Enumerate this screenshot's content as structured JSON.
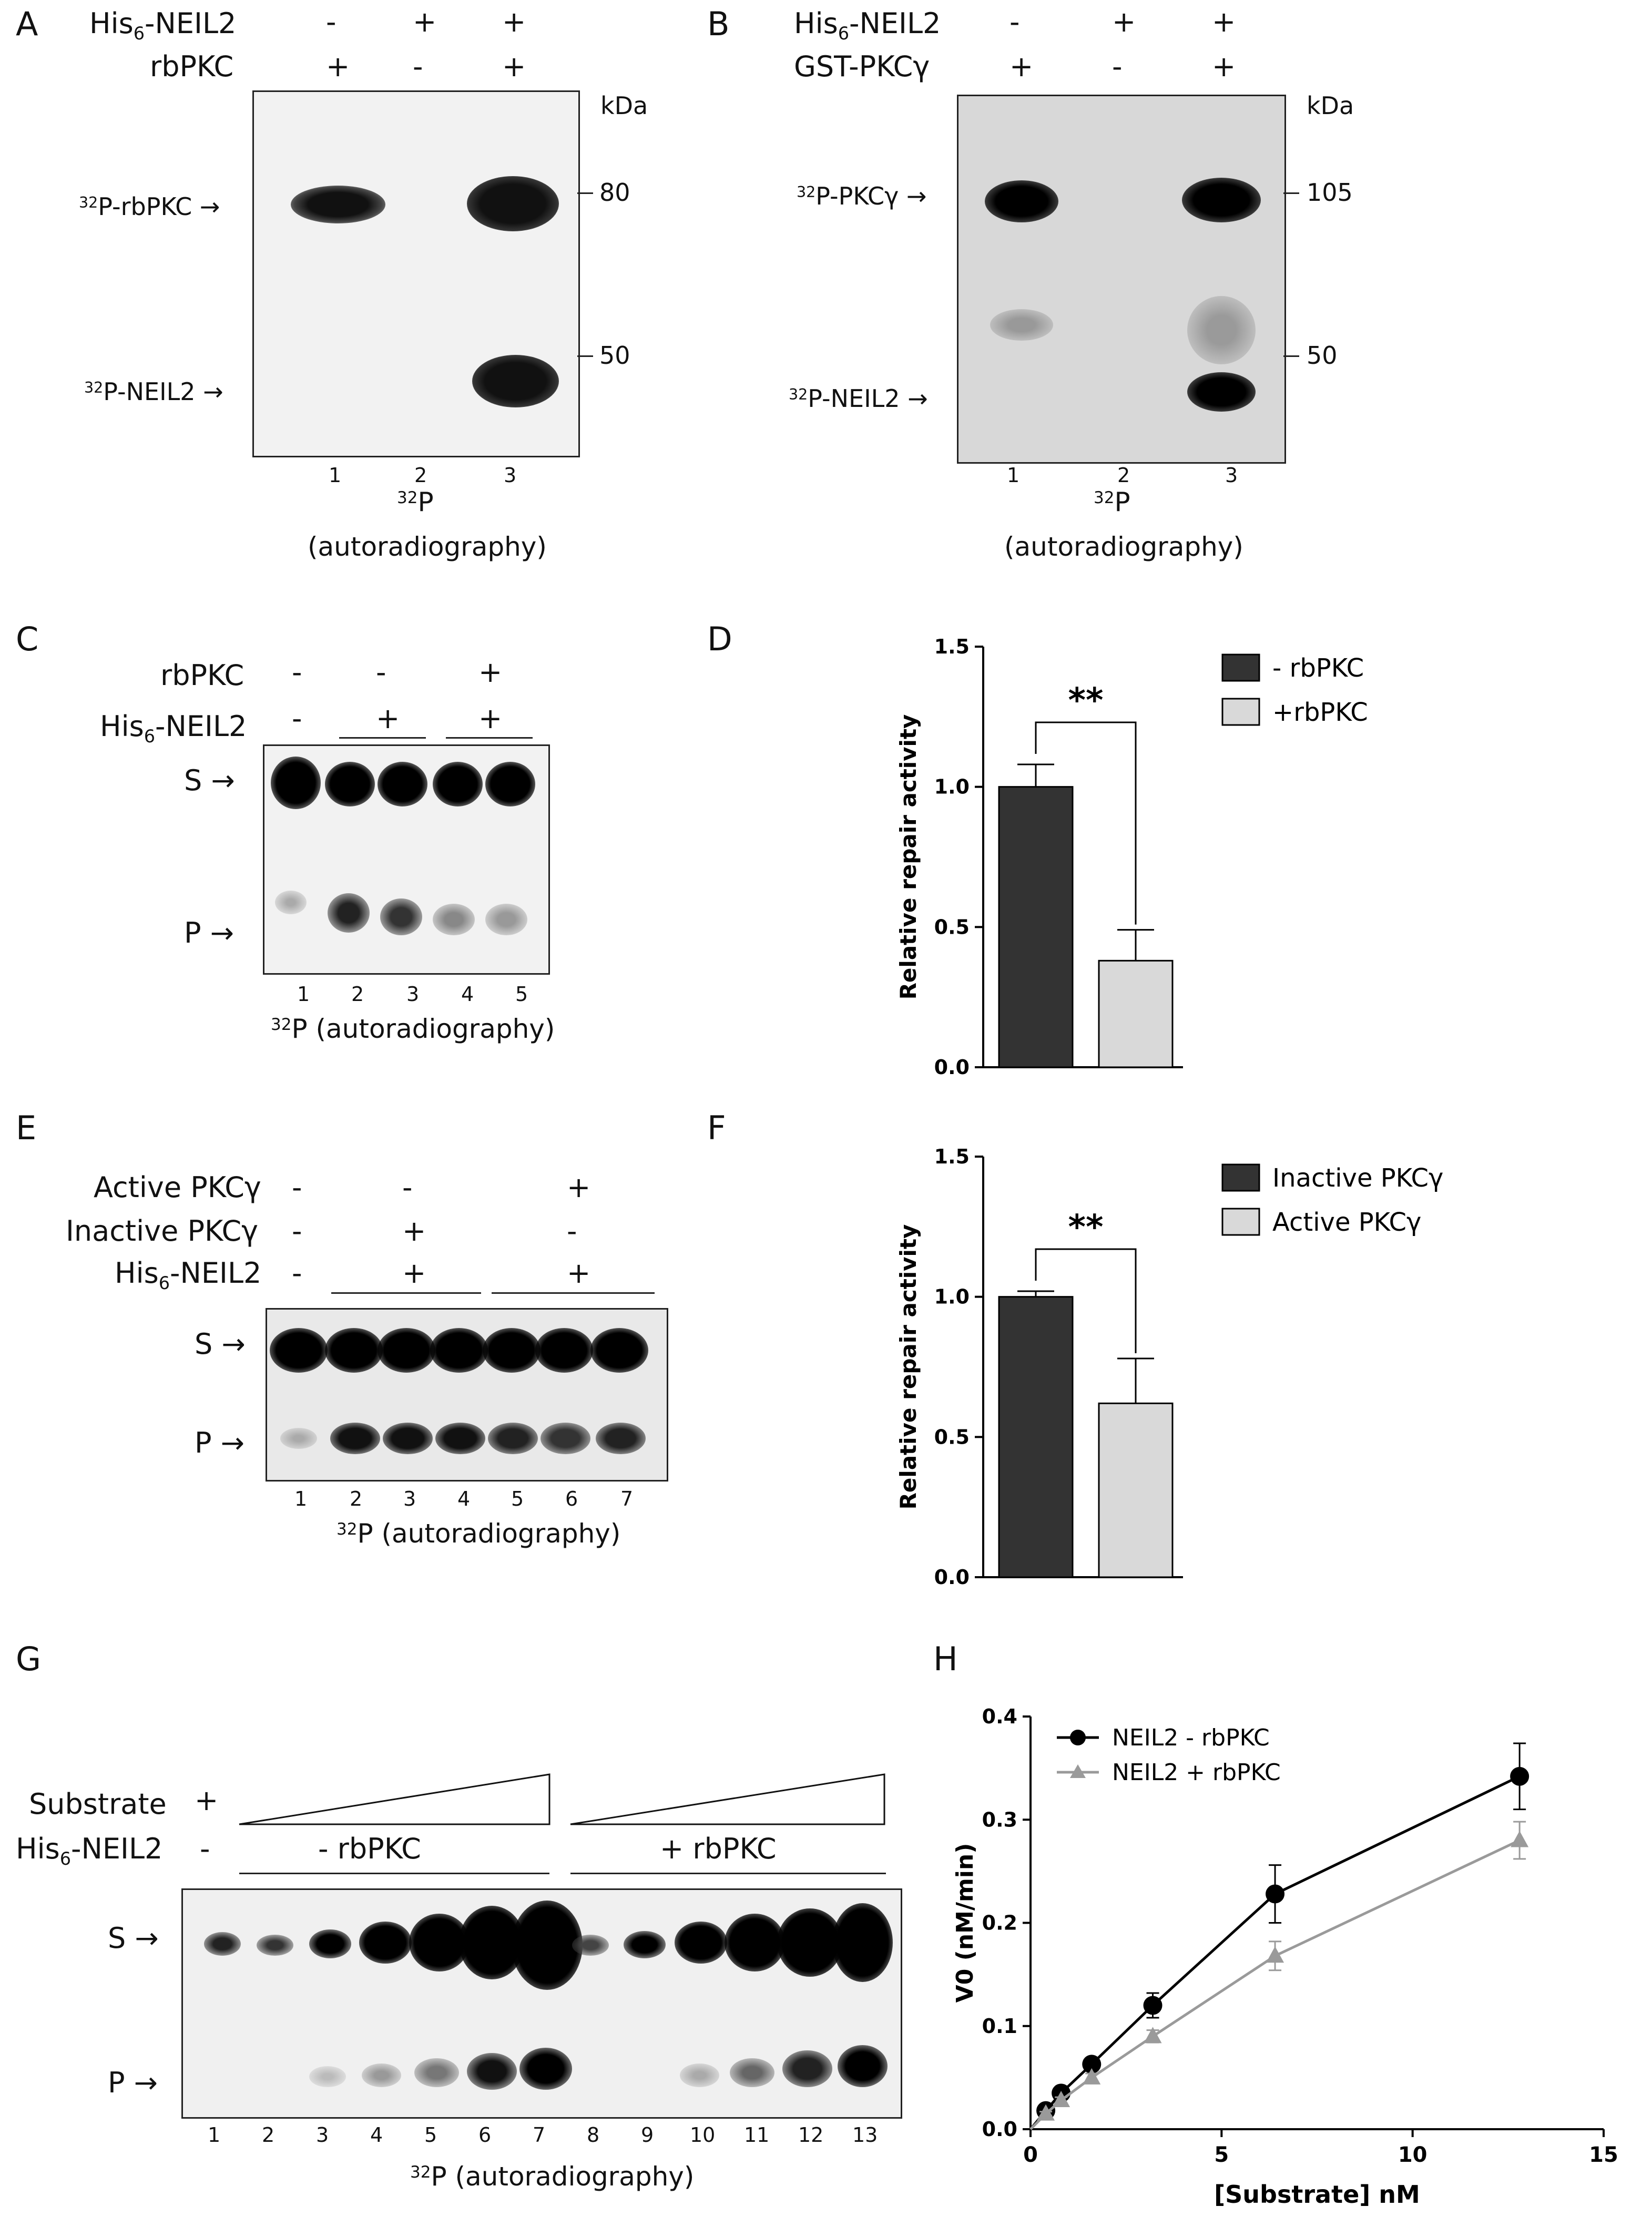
{
  "panels": {
    "A": {
      "letter": "A",
      "rows": [
        {
          "label": "His",
          "sub": "6",
          "label_rest": "-NEIL2",
          "marks": [
            "-",
            "+",
            "+"
          ]
        },
        {
          "label": "rbPKC",
          "marks": [
            "+",
            "-",
            "+"
          ]
        }
      ],
      "unit": "kDa",
      "markers": [
        "80",
        "50"
      ],
      "bands": [
        {
          "sup": "32",
          "text": "P-rbPKC"
        },
        {
          "sup": "32",
          "text": "P-NEIL2"
        }
      ],
      "lanes": [
        "1",
        "2",
        "3"
      ],
      "caption_sup": "32",
      "caption_main": "P",
      "caption_sub": "(autoradiography)"
    },
    "B": {
      "letter": "B",
      "rows": [
        {
          "label": "His",
          "sub": "6",
          "label_rest": "-NEIL2",
          "marks": [
            "-",
            "+",
            "+"
          ]
        },
        {
          "label": "GST-PKCγ",
          "marks": [
            "+",
            "-",
            "+"
          ]
        }
      ],
      "unit": "kDa",
      "markers": [
        "105",
        "50"
      ],
      "bands": [
        {
          "sup": "32",
          "text": "P-PKCγ"
        },
        {
          "sup": "32",
          "text": "P-NEIL2"
        }
      ],
      "lanes": [
        "1",
        "2",
        "3"
      ],
      "caption_sup": "32",
      "caption_main": "P",
      "caption_sub": "(autoradiography)"
    },
    "C": {
      "letter": "C",
      "rows": [
        {
          "label": "rbPKC",
          "marks": [
            "-",
            "-",
            "+"
          ]
        },
        {
          "label": "His",
          "sub": "6",
          "label_rest": "-NEIL2",
          "marks": [
            "-",
            "+",
            "+"
          ]
        }
      ],
      "bands": [
        "S",
        "P"
      ],
      "lanes": [
        "1",
        "2",
        "3",
        "4",
        "5"
      ],
      "caption_sup": "32",
      "caption_main": "P (autoradiography)"
    },
    "D": {
      "letter": "D"
    },
    "E": {
      "letter": "E",
      "rows": [
        {
          "label": "Active PKCγ",
          "marks": [
            "-",
            "-",
            "+"
          ]
        },
        {
          "label": "Inactive PKCγ",
          "marks": [
            "-",
            "+",
            "-"
          ]
        },
        {
          "label": "His",
          "sub": "6",
          "label_rest": "-NEIL2",
          "marks": [
            "-",
            "+",
            "+"
          ]
        }
      ],
      "bands": [
        "S",
        "P"
      ],
      "lanes": [
        "1",
        "2",
        "3",
        "4",
        "5",
        "6",
        "7"
      ],
      "caption_sup": "32",
      "caption_main": "P (autoradiography)"
    },
    "F": {
      "letter": "F"
    },
    "G": {
      "letter": "G",
      "rows": [
        {
          "label": "Substrate",
          "mark": "+"
        },
        {
          "label": "His",
          "sub": "6",
          "label_rest": "-NEIL2",
          "mark": "-"
        }
      ],
      "groups": [
        "- rbPKC",
        "+ rbPKC"
      ],
      "bands": [
        "S",
        "P"
      ],
      "lanes": [
        "1",
        "2",
        "3",
        "4",
        "5",
        "6",
        "7",
        "8",
        "9",
        "10",
        "11",
        "12",
        "13"
      ],
      "caption_sup": "32",
      "caption_main": "P (autoradiography)"
    },
    "H": {
      "letter": "H"
    }
  },
  "chart_data": [
    {
      "id": "D",
      "type": "bar",
      "categories": [
        "- rbPKC",
        "+rbPKC"
      ],
      "values": [
        1.0,
        0.38
      ],
      "errors": [
        0.08,
        0.11
      ],
      "colors": [
        "#333333",
        "#d9d9d9"
      ],
      "ylabel": "Relative repair activity",
      "ylim": [
        0,
        1.5
      ],
      "yticks": [
        "0.0",
        "0.5",
        "1.0",
        "1.5"
      ],
      "significance": "**",
      "legend": [
        "- rbPKC",
        "+rbPKC"
      ]
    },
    {
      "id": "F",
      "type": "bar",
      "categories": [
        "Inactive PKCγ",
        "Active PKCγ"
      ],
      "values": [
        1.0,
        0.62
      ],
      "errors": [
        0.02,
        0.16
      ],
      "colors": [
        "#333333",
        "#d9d9d9"
      ],
      "ylabel": "Relative repair activity",
      "ylim": [
        0,
        1.5
      ],
      "yticks": [
        "0.0",
        "0.5",
        "1.0",
        "1.5"
      ],
      "significance": "**",
      "legend": [
        "Inactive PKCγ",
        "Active PKCγ"
      ]
    },
    {
      "id": "H",
      "type": "line",
      "xlabel": "[Substrate] nM",
      "ylabel": "V0 (nM/min)",
      "xlim": [
        0,
        15
      ],
      "ylim": [
        0,
        0.4
      ],
      "xticks": [
        "0",
        "5",
        "10",
        "15"
      ],
      "yticks": [
        "0.0",
        "0.1",
        "0.2",
        "0.3",
        "0.4"
      ],
      "series": [
        {
          "name": "NEIL2 - rbPKC",
          "color": "#000000",
          "marker": "circle",
          "x": [
            0.4,
            0.8,
            1.6,
            3.2,
            6.4,
            12.8
          ],
          "y": [
            0.018,
            0.035,
            0.063,
            0.12,
            0.228,
            0.342
          ],
          "err": [
            0.002,
            0.004,
            0.005,
            0.012,
            0.028,
            0.032
          ]
        },
        {
          "name": "NEIL2 + rbPKC",
          "color": "#9a9a9a",
          "marker": "triangle",
          "x": [
            0.4,
            0.8,
            1.6,
            3.2,
            6.4,
            12.8
          ],
          "y": [
            0.015,
            0.028,
            0.05,
            0.09,
            0.168,
            0.28
          ],
          "err": [
            0.002,
            0.003,
            0.004,
            0.006,
            0.014,
            0.018
          ]
        }
      ],
      "legend_position": "top-left"
    }
  ]
}
